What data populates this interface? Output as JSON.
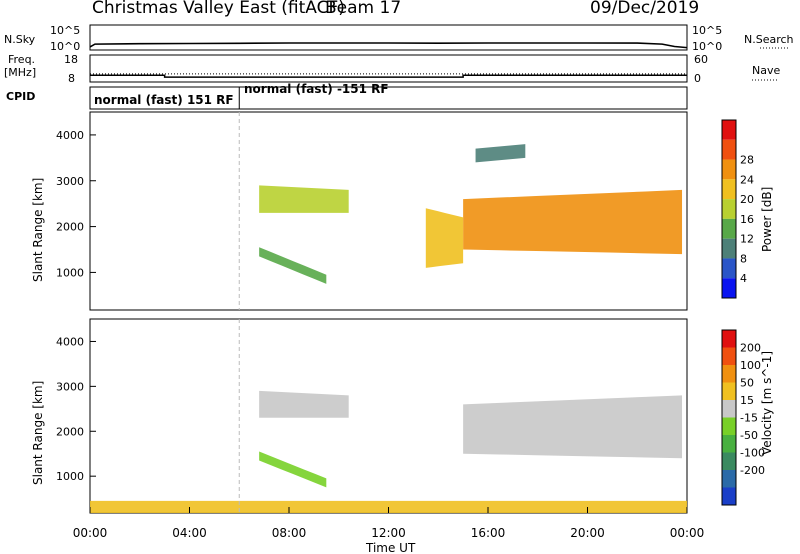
{
  "header": {
    "station": "Christmas Valley East (fitACF)",
    "beam": "Beam 17",
    "date": "09/Dec/2019"
  },
  "labels": {
    "nsky": "N.Sky",
    "nsearch": "N.Search",
    "freq": "Freq.",
    "freq_unit": "[MHz]",
    "nave": "Nave",
    "cpid": "CPID",
    "log_top": "10^5",
    "log_bottom": "10^0"
  },
  "cpid_segments": [
    {
      "start_hour": 0,
      "end_hour": 6,
      "label": "normal (fast) 151 RF"
    },
    {
      "start_hour": 6,
      "end_hour": 24,
      "label": "normal (fast) -151 RF"
    }
  ],
  "chart_data": [
    {
      "type": "line",
      "title": "N.Sky / N.Search",
      "yscale": "log",
      "ylim": [
        1,
        100000
      ],
      "ytick_labels": [
        "10^5",
        "10^0"
      ],
      "xlim": [
        0,
        24
      ],
      "series": [
        {
          "name": "N.Sky",
          "style": "solid",
          "x": [
            0,
            0.2,
            2,
            4,
            6,
            8,
            10,
            12,
            14,
            16,
            18,
            20,
            22,
            23,
            23.5,
            24
          ],
          "y": [
            4,
            15,
            18,
            20,
            22,
            25,
            25,
            25,
            23,
            25,
            25,
            25,
            24,
            15,
            5,
            3
          ]
        },
        {
          "name": "N.Search",
          "style": "dotted"
        }
      ]
    },
    {
      "type": "line",
      "left_ylim": [
        8,
        18
      ],
      "left_ytick_labels": [
        "18",
        "8"
      ],
      "right_ylim": [
        0,
        60
      ],
      "right_ytick_labels": [
        "60",
        "0"
      ],
      "xlim": [
        0,
        24
      ],
      "series": [
        {
          "name": "Freq.",
          "style": "solid",
          "axis": "left",
          "x": [
            0,
            3,
            3,
            15,
            15,
            24
          ],
          "y": [
            10.5,
            10.5,
            9.8,
            9.8,
            10.5,
            10.5
          ]
        },
        {
          "name": "Nave",
          "style": "dotted",
          "axis": "right",
          "x": [
            0,
            24
          ],
          "y": [
            18,
            18
          ]
        }
      ]
    },
    {
      "type": "heatmap",
      "quantity": "Power",
      "ylabel": "Slant Range [km]",
      "xlim": [
        0,
        24
      ],
      "ylim": [
        180,
        4500
      ],
      "yticks": [
        1000,
        2000,
        3000,
        4000
      ],
      "colorbar": {
        "label": "Power [dB]",
        "ticks": [
          "4",
          "8",
          "12",
          "16",
          "20",
          "24",
          "28"
        ],
        "colors": [
          "#0a14f0",
          "#2a55c8",
          "#4d8078",
          "#58a848",
          "#b8d030",
          "#f0c020",
          "#f09010",
          "#f05010",
          "#e01010"
        ]
      },
      "regions": [
        {
          "t": [
            6.8,
            10.4
          ],
          "r_lo": [
            2300,
            2300
          ],
          "r_hi": [
            2900,
            2800
          ],
          "dominant_db": 16
        },
        {
          "t": [
            6.8,
            9.5
          ],
          "r_lo": [
            1350,
            750
          ],
          "r_hi": [
            1550,
            950
          ],
          "dominant_db": 10
        },
        {
          "t": [
            15,
            23.8
          ],
          "r_lo": [
            1500,
            1400
          ],
          "r_hi": [
            2600,
            2800
          ],
          "dominant_db": 24
        },
        {
          "t": [
            15.5,
            17.5
          ],
          "r_lo": [
            3400,
            3500
          ],
          "r_hi": [
            3700,
            3800
          ],
          "dominant_db": 8
        },
        {
          "t": [
            13.5,
            15
          ],
          "r_lo": [
            1100,
            1200
          ],
          "r_hi": [
            2400,
            2200
          ],
          "dominant_db": 18
        }
      ]
    },
    {
      "type": "heatmap",
      "quantity": "Velocity",
      "ylabel": "Slant Range [km]",
      "xlabel": "Time UT",
      "xlim": [
        0,
        24
      ],
      "ylim": [
        180,
        4500
      ],
      "xtick_labels": [
        "00:00",
        "04:00",
        "08:00",
        "12:00",
        "16:00",
        "20:00",
        "00:00"
      ],
      "yticks": [
        1000,
        2000,
        3000,
        4000
      ],
      "colorbar": {
        "label": "Velocity [m s^-1]",
        "ticks": [
          "200",
          "100",
          "50",
          "15",
          "-15",
          "-50",
          "-100",
          "-200"
        ],
        "colors": [
          "#1a3fc8",
          "#2a6aa8",
          "#3a8a60",
          "#48b040",
          "#78d028",
          "#c8c8c8",
          "#f0c020",
          "#f09010",
          "#f05010",
          "#e01010"
        ]
      },
      "regions": [
        {
          "t": [
            6.8,
            10.4
          ],
          "r_lo": [
            2300,
            2300
          ],
          "r_hi": [
            2900,
            2800
          ],
          "dominant_ms": 0
        },
        {
          "t": [
            6.8,
            9.5
          ],
          "r_lo": [
            1350,
            750
          ],
          "r_hi": [
            1550,
            950
          ],
          "dominant_ms": 60
        },
        {
          "t": [
            15,
            23.8
          ],
          "r_lo": [
            1500,
            1400
          ],
          "r_hi": [
            2600,
            2800
          ],
          "dominant_ms": 0
        },
        {
          "t": [
            0,
            24
          ],
          "r_lo": [
            180,
            180
          ],
          "r_hi": [
            450,
            450
          ],
          "dominant_ms": -40
        }
      ]
    }
  ]
}
